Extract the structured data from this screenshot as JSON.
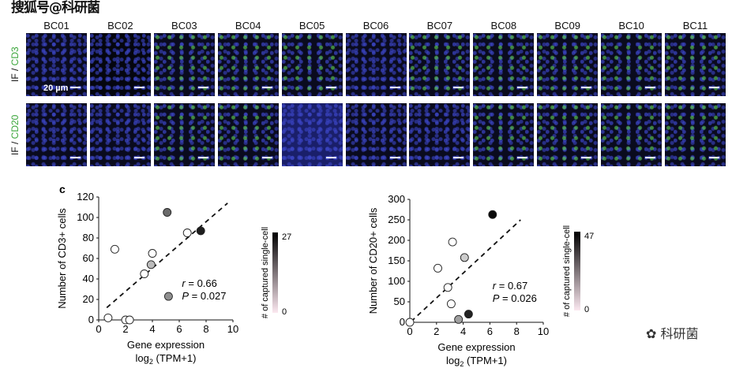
{
  "watermark": "搜狐号@科研菌",
  "logo_text": "科研菌",
  "panel_letter": "c",
  "if_figure": {
    "columns": [
      "BC01",
      "BC02",
      "BC03",
      "BC04",
      "BC05",
      "BC06",
      "BC07",
      "BC08",
      "BC09",
      "BC10",
      "BC11"
    ],
    "rows": [
      {
        "label_prefix": "IF / ",
        "label_marker": "CD3",
        "marker_color": "#3aa53a"
      },
      {
        "label_prefix": "IF / ",
        "label_marker": "CD20",
        "marker_color": "#3aa53a"
      }
    ],
    "scale_bar": "20 µm"
  },
  "chart_data": [
    {
      "type": "scatter",
      "xlabel": "Gene expression",
      "xlabel2": "log2 (TPM+1)",
      "ylabel": "Number of CD3+ cells",
      "xlim": [
        0,
        10
      ],
      "ylim": [
        0,
        120
      ],
      "xticks": [
        0,
        2,
        4,
        6,
        8,
        10
      ],
      "yticks": [
        0,
        20,
        40,
        60,
        80,
        100,
        120
      ],
      "points": [
        {
          "x": 0.7,
          "y": 2,
          "fill": "#ffffff"
        },
        {
          "x": 1.2,
          "y": 69,
          "fill": "#ffffff"
        },
        {
          "x": 2.0,
          "y": 0,
          "fill": "#ffffff"
        },
        {
          "x": 2.3,
          "y": 0,
          "fill": "#ffffff"
        },
        {
          "x": 3.4,
          "y": 45,
          "fill": "#ffffff"
        },
        {
          "x": 3.9,
          "y": 54,
          "fill": "#bbbbbb"
        },
        {
          "x": 4.0,
          "y": 65,
          "fill": "#ffffff"
        },
        {
          "x": 5.1,
          "y": 105,
          "fill": "#6a6a6a"
        },
        {
          "x": 5.2,
          "y": 23,
          "fill": "#8f8f8f"
        },
        {
          "x": 6.6,
          "y": 85,
          "fill": "#ffffff"
        },
        {
          "x": 7.6,
          "y": 87,
          "fill": "#1e1e1e"
        }
      ],
      "fit_line": [
        [
          0.6,
          12
        ],
        [
          9.6,
          114
        ]
      ],
      "annotation_r": "0.66",
      "annotation_p": "0.027",
      "colorbar": {
        "label": "# of captured single-cell",
        "min": "0",
        "max": "27",
        "low_color": "#fbe8f0",
        "high_color": "#000000"
      }
    },
    {
      "type": "scatter",
      "xlabel": "Gene expression",
      "xlabel2": "log2 (TPM+1)",
      "ylabel": "Number of CD20+ cells",
      "xlim": [
        0,
        10
      ],
      "ylim": [
        0,
        300
      ],
      "xticks": [
        0,
        2,
        4,
        6,
        8,
        10
      ],
      "yticks": [
        0,
        50,
        100,
        150,
        200,
        250,
        300
      ],
      "points": [
        {
          "x": 0,
          "y": 0,
          "fill": "#ffffff"
        },
        {
          "x": 2.1,
          "y": 132,
          "fill": "#ffffff"
        },
        {
          "x": 2.85,
          "y": 85,
          "fill": "#ffffff"
        },
        {
          "x": 3.1,
          "y": 45,
          "fill": "#ffffff"
        },
        {
          "x": 3.2,
          "y": 196,
          "fill": "#ffffff"
        },
        {
          "x": 3.65,
          "y": 7,
          "fill": "#a0a0a0"
        },
        {
          "x": 4.1,
          "y": 158,
          "fill": "#cccccc"
        },
        {
          "x": 4.4,
          "y": 20,
          "fill": "#222222"
        },
        {
          "x": 6.2,
          "y": 263,
          "fill": "#0a0a0a"
        }
      ],
      "fit_line": [
        [
          0.1,
          2
        ],
        [
          8.3,
          250
        ]
      ],
      "annotation_r": "0.67",
      "annotation_p": "0.026",
      "colorbar": {
        "label": "# of captured single-cell",
        "min": "0",
        "max": "47",
        "low_color": "#fbe8f0",
        "high_color": "#000000"
      }
    }
  ]
}
